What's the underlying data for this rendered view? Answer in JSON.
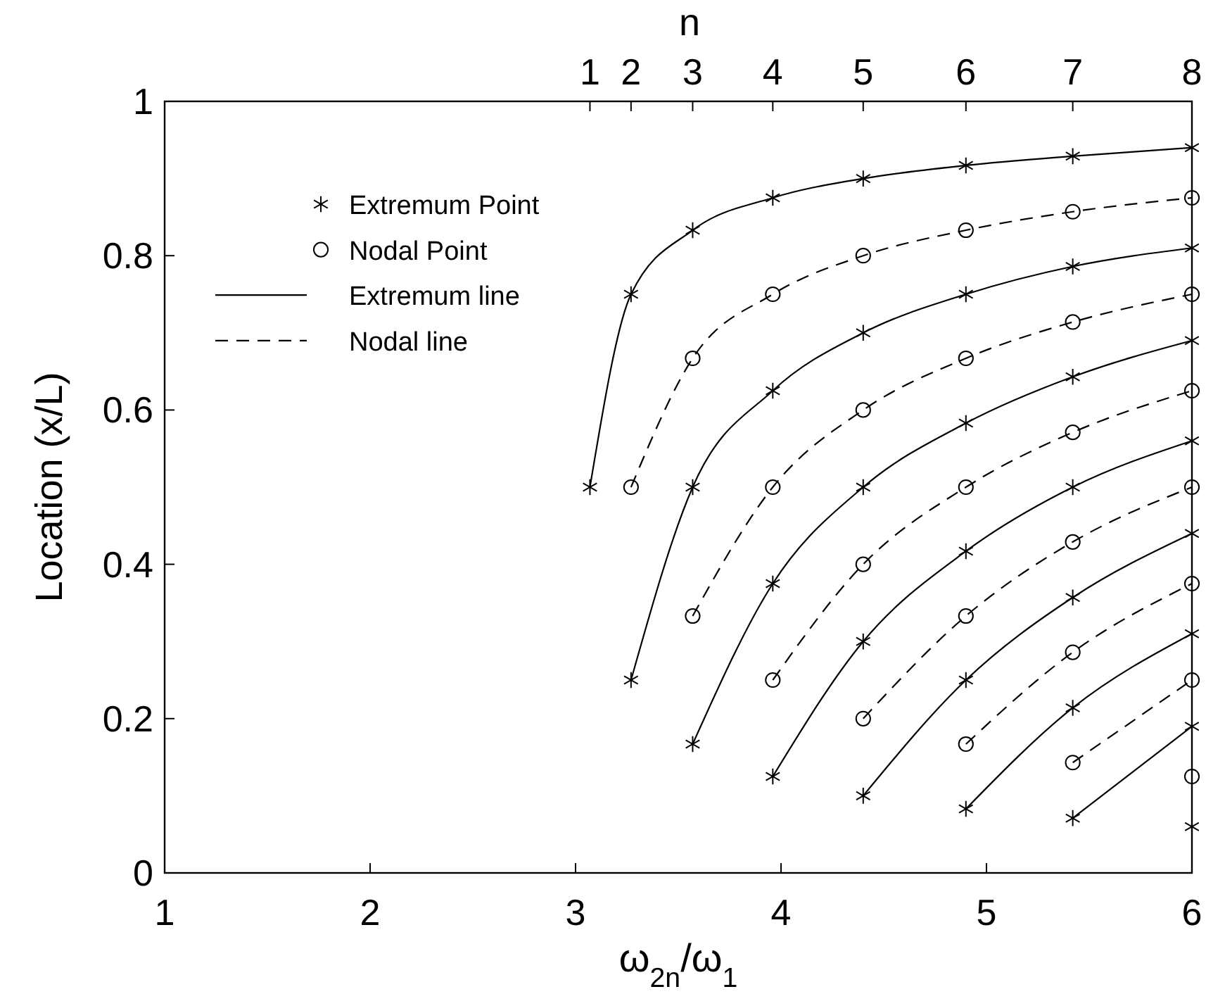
{
  "chart_data": {
    "type": "line",
    "xlabel": "ω$_{2n}$/ω$_{1}$",
    "ylabel": "Location (x/L)",
    "x2label": "n",
    "xlim": [
      1,
      6
    ],
    "xticks": [
      1,
      2,
      3,
      4,
      5,
      6
    ],
    "ylim": [
      0,
      1
    ],
    "yticks": [
      0,
      0.2,
      0.4,
      0.6,
      0.8,
      1
    ],
    "annotations": [
      "1",
      "2",
      "3",
      "4",
      "5",
      "6",
      "7",
      "8"
    ],
    "grid": false,
    "legend": "top left",
    "series": [
      {
        "name": "Extremum Point",
        "type": "scatter",
        "marker": "cross",
        "color": "#000000",
        "x": [
          3.07,
          3.27,
          3.27,
          3.57,
          3.57,
          3.57,
          3.96,
          3.96,
          3.96,
          3.96,
          4.4,
          4.4,
          4.4,
          4.4,
          4.4,
          4.9,
          4.9,
          4.9,
          4.9,
          4.9,
          4.9,
          5.42,
          5.42,
          5.42,
          5.42,
          5.42,
          5.42,
          5.42,
          6,
          6,
          6,
          6,
          6,
          6,
          6,
          6
        ],
        "values": [
          0.5,
          0.25,
          0.75,
          0.167,
          0.5,
          0.833,
          0.125,
          0.375,
          0.625,
          0.875,
          0.1,
          0.3,
          0.5,
          0.7,
          0.9,
          0.083,
          0.25,
          0.417,
          0.583,
          0.75,
          0.917,
          0.071,
          0.214,
          0.357,
          0.5,
          0.643,
          0.786,
          0.929,
          0.06,
          0.19,
          0.31,
          0.44,
          0.56,
          0.69,
          0.81,
          0.94
        ]
      },
      {
        "name": "Nodal Point",
        "type": "scatter",
        "marker": "circle",
        "color": "#000000",
        "x": [
          3.27,
          3.57,
          3.57,
          3.96,
          3.96,
          3.96,
          4.4,
          4.4,
          4.4,
          4.4,
          4.9,
          4.9,
          4.9,
          4.9,
          4.9,
          5.42,
          5.42,
          5.42,
          5.42,
          5.42,
          5.42,
          6,
          6,
          6,
          6,
          6,
          6,
          6
        ],
        "values": [
          0.5,
          0.333,
          0.667,
          0.25,
          0.5,
          0.75,
          0.2,
          0.4,
          0.6,
          0.8,
          0.167,
          0.333,
          0.5,
          0.667,
          0.833,
          0.143,
          0.286,
          0.429,
          0.571,
          0.714,
          0.857,
          0.125,
          0.25,
          0.375,
          0.5,
          0.625,
          0.75,
          0.875
        ]
      },
      {
        "name": "Extremum line",
        "type": "line",
        "line_style": "solid",
        "color": "#000000",
        "x": [
          3.07,
          3.27,
          3.57,
          3.96,
          4.4,
          4.9,
          5.42,
          6
        ],
        "values": [
          0.5,
          0.75,
          0.833,
          0.875,
          0.9,
          0.917,
          0.929,
          0.94
        ]
      },
      {
        "type": "line",
        "line_style": "solid",
        "color": "#000000",
        "x": [
          3.27,
          3.57,
          3.96,
          4.4,
          4.9,
          5.42,
          6
        ],
        "values": [
          0.25,
          0.5,
          0.625,
          0.7,
          0.75,
          0.786,
          0.81
        ]
      },
      {
        "type": "line",
        "line_style": "solid",
        "color": "#000000",
        "x": [
          3.57,
          3.96,
          4.4,
          4.9,
          5.42,
          6
        ],
        "values": [
          0.167,
          0.375,
          0.5,
          0.583,
          0.643,
          0.69
        ]
      },
      {
        "type": "line",
        "line_style": "solid",
        "color": "#000000",
        "x": [
          3.96,
          4.4,
          4.9,
          5.42,
          6
        ],
        "values": [
          0.125,
          0.3,
          0.417,
          0.5,
          0.56
        ]
      },
      {
        "type": "line",
        "line_style": "solid",
        "color": "#000000",
        "x": [
          4.4,
          4.9,
          5.42,
          6
        ],
        "values": [
          0.1,
          0.25,
          0.357,
          0.44
        ]
      },
      {
        "type": "line",
        "line_style": "solid",
        "color": "#000000",
        "x": [
          4.9,
          5.42,
          6
        ],
        "values": [
          0.083,
          0.214,
          0.31
        ]
      },
      {
        "type": "line",
        "line_style": "solid",
        "color": "#000000",
        "x": [
          5.42,
          6
        ],
        "values": [
          0.071,
          0.19
        ]
      },
      {
        "name": "Nodal line",
        "type": "line",
        "line_style": "dashed",
        "color": "#000000",
        "x": [
          3.27,
          3.57,
          3.96,
          4.4,
          4.9,
          5.42,
          6
        ],
        "values": [
          0.5,
          0.667,
          0.75,
          0.8,
          0.833,
          0.857,
          0.875
        ]
      },
      {
        "type": "line",
        "line_style": "dashed",
        "color": "#000000",
        "x": [
          3.57,
          3.96,
          4.4,
          4.9,
          5.42,
          6
        ],
        "values": [
          0.333,
          0.5,
          0.6,
          0.667,
          0.714,
          0.75
        ]
      },
      {
        "type": "line",
        "line_style": "dashed",
        "color": "#000000",
        "x": [
          3.96,
          4.4,
          4.9,
          5.42,
          6
        ],
        "values": [
          0.25,
          0.4,
          0.5,
          0.571,
          0.625
        ]
      },
      {
        "type": "line",
        "line_style": "dashed",
        "color": "#000000",
        "x": [
          4.4,
          4.9,
          5.42,
          6
        ],
        "values": [
          0.2,
          0.333,
          0.429,
          0.5
        ]
      },
      {
        "type": "line",
        "line_style": "dashed",
        "color": "#000000",
        "x": [
          4.9,
          5.42,
          6
        ],
        "values": [
          0.167,
          0.286,
          0.375
        ]
      },
      {
        "type": "line",
        "line_style": "dashed",
        "color": "#000000",
        "x": [
          5.42,
          6
        ],
        "values": [
          0.143,
          0.25
        ]
      }
    ]
  }
}
